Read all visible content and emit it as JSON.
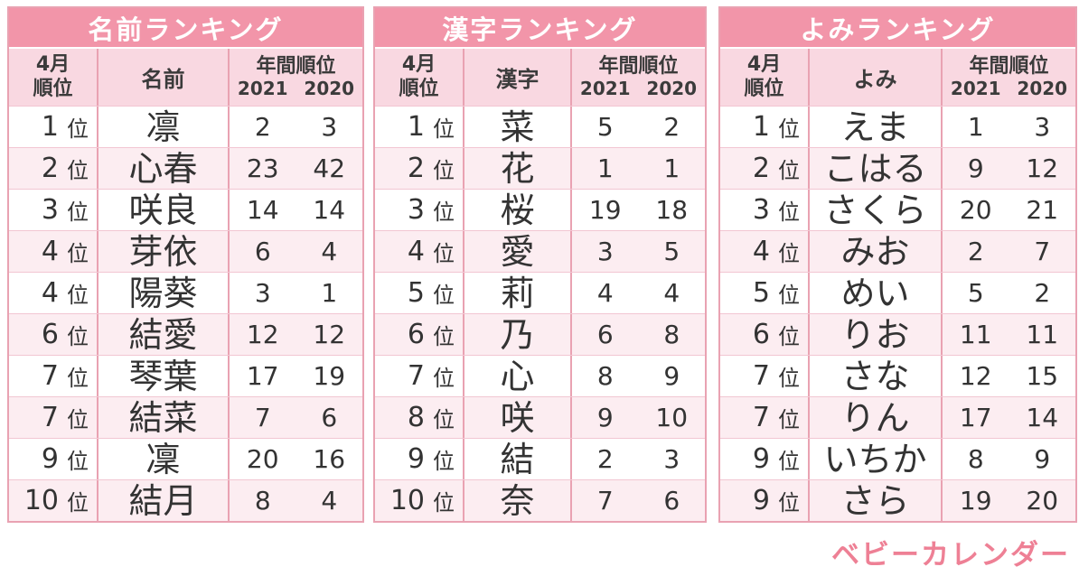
{
  "colors": {
    "title_bg": "#F295A9",
    "title_text": "#FFFFFF",
    "header_bg": "#F9D8E1",
    "row_bg": "#FFFFFF",
    "row_alt_bg": "#FCEDF1",
    "border": "#E9A2B2",
    "row_divider": "#F2C6D2",
    "text": "#333333",
    "logo_pink": "#EE8095"
  },
  "labels": {
    "rank_suffix": "位"
  },
  "logo": {
    "text": "ベビーカレンダー"
  },
  "chart_data": [
    {
      "type": "table",
      "title": "名前ランキング",
      "headers": {
        "rank_top": "4月",
        "rank_bottom": "順位",
        "name": "名前",
        "annual": "年間順位",
        "year_left": "2021",
        "year_right": "2020"
      },
      "rows": [
        {
          "rank": "1",
          "name": "凛",
          "y2021": "2",
          "y2020": "3"
        },
        {
          "rank": "2",
          "name": "心春",
          "y2021": "23",
          "y2020": "42"
        },
        {
          "rank": "3",
          "name": "咲良",
          "y2021": "14",
          "y2020": "14"
        },
        {
          "rank": "4",
          "name": "芽依",
          "y2021": "6",
          "y2020": "4"
        },
        {
          "rank": "4",
          "name": "陽葵",
          "y2021": "3",
          "y2020": "1"
        },
        {
          "rank": "6",
          "name": "結愛",
          "y2021": "12",
          "y2020": "12"
        },
        {
          "rank": "7",
          "name": "琴葉",
          "y2021": "17",
          "y2020": "19"
        },
        {
          "rank": "7",
          "name": "結菜",
          "y2021": "7",
          "y2020": "6"
        },
        {
          "rank": "9",
          "name": "凜",
          "y2021": "20",
          "y2020": "16"
        },
        {
          "rank": "10",
          "name": "結月",
          "y2021": "8",
          "y2020": "4"
        }
      ]
    },
    {
      "type": "table",
      "title": "漢字ランキング",
      "headers": {
        "rank_top": "4月",
        "rank_bottom": "順位",
        "name": "漢字",
        "annual": "年間順位",
        "year_left": "2021",
        "year_right": "2020"
      },
      "rows": [
        {
          "rank": "1",
          "name": "菜",
          "y2021": "5",
          "y2020": "2"
        },
        {
          "rank": "2",
          "name": "花",
          "y2021": "1",
          "y2020": "1"
        },
        {
          "rank": "3",
          "name": "桜",
          "y2021": "19",
          "y2020": "18"
        },
        {
          "rank": "4",
          "name": "愛",
          "y2021": "3",
          "y2020": "5"
        },
        {
          "rank": "5",
          "name": "莉",
          "y2021": "4",
          "y2020": "4"
        },
        {
          "rank": "6",
          "name": "乃",
          "y2021": "6",
          "y2020": "8"
        },
        {
          "rank": "7",
          "name": "心",
          "y2021": "8",
          "y2020": "9"
        },
        {
          "rank": "8",
          "name": "咲",
          "y2021": "9",
          "y2020": "10"
        },
        {
          "rank": "9",
          "name": "結",
          "y2021": "2",
          "y2020": "3"
        },
        {
          "rank": "10",
          "name": "奈",
          "y2021": "7",
          "y2020": "6"
        }
      ]
    },
    {
      "type": "table",
      "title": "よみランキング",
      "headers": {
        "rank_top": "4月",
        "rank_bottom": "順位",
        "name": "よみ",
        "annual": "年間順位",
        "year_left": "2021",
        "year_right": "2020"
      },
      "rows": [
        {
          "rank": "1",
          "name": "えま",
          "y2021": "1",
          "y2020": "3"
        },
        {
          "rank": "2",
          "name": "こはる",
          "y2021": "9",
          "y2020": "12"
        },
        {
          "rank": "3",
          "name": "さくら",
          "y2021": "20",
          "y2020": "21"
        },
        {
          "rank": "4",
          "name": "みお",
          "y2021": "2",
          "y2020": "7"
        },
        {
          "rank": "5",
          "name": "めい",
          "y2021": "5",
          "y2020": "2"
        },
        {
          "rank": "6",
          "name": "りお",
          "y2021": "11",
          "y2020": "11"
        },
        {
          "rank": "7",
          "name": "さな",
          "y2021": "12",
          "y2020": "15"
        },
        {
          "rank": "7",
          "name": "りん",
          "y2021": "17",
          "y2020": "14"
        },
        {
          "rank": "9",
          "name": "いちか",
          "y2021": "8",
          "y2020": "9"
        },
        {
          "rank": "9",
          "name": "さら",
          "y2021": "19",
          "y2020": "20"
        }
      ]
    }
  ]
}
